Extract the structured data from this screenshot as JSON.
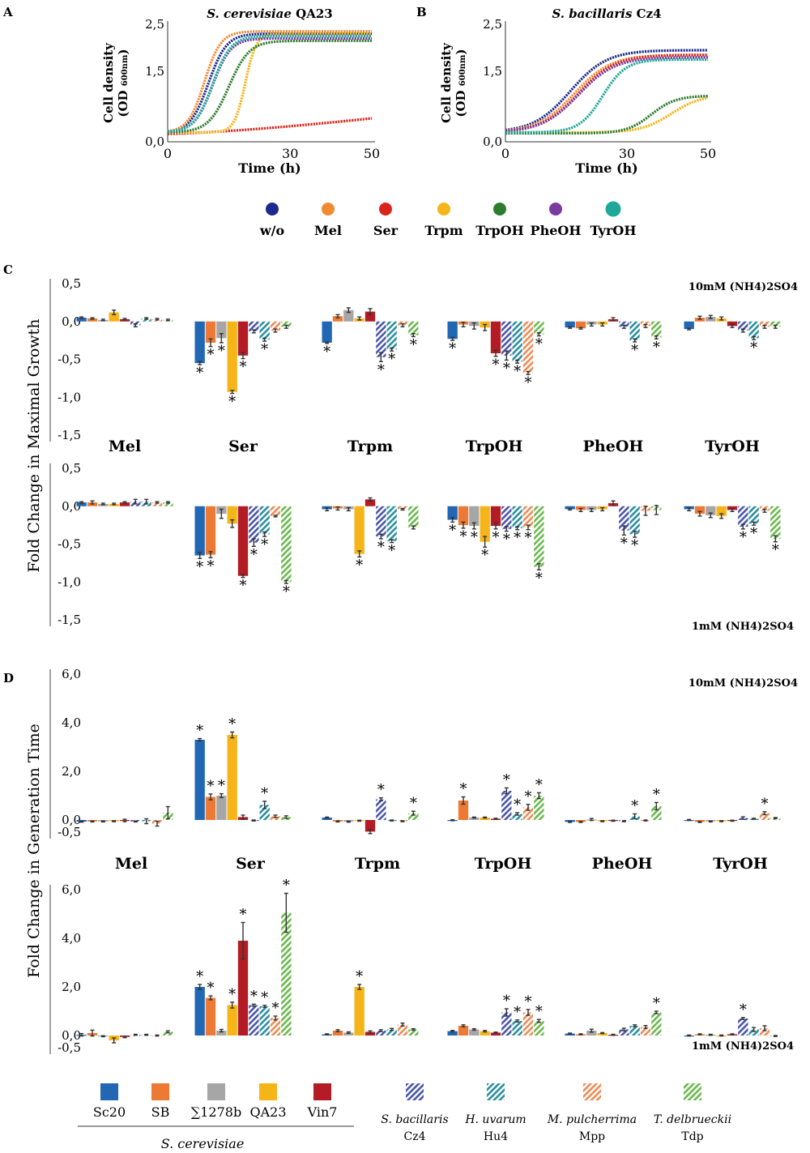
{
  "colors": {
    "w/o": "#1b2a8c",
    "Mel": "#f08a30",
    "Ser": "#d9261c",
    "Trpm": "#f5b518",
    "TrpOH": "#2e7d2e",
    "PheOH": "#7b3aa0",
    "TyrOH": "#1fa89a",
    "Sc20": "#2167b4",
    "SB": "#ed7a34",
    "S1278b": "#a6a6a6",
    "QA23": "#f5b518",
    "Vin7": "#b31c25",
    "Cz4": "#4a55a8",
    "Hu4": "#2b8fa0",
    "Mpp": "#ee8a55",
    "Tdp": "#6ab84e"
  },
  "panel_labels": {
    "A": "A",
    "B": "B",
    "C": "C",
    "D": "D"
  },
  "growth_curves": [
    {
      "type": "line",
      "panel": "A",
      "title_italic": "S. cerevisiae",
      "title_rest": " QA23",
      "xlabel": "Time (h)",
      "ylabel_1": "Cell density",
      "ylabel_2": "(OD",
      "ylabel_sub": "600nm",
      "ylabel_close": ")",
      "xlim": [
        0,
        50
      ],
      "ylim": [
        0,
        2.5
      ],
      "xticks": [
        0,
        30,
        50
      ],
      "xtick_labels": [
        "0",
        "30",
        "50"
      ],
      "yticks": [
        0,
        1.5,
        2.5
      ],
      "ytick_labels": [
        "0,0",
        "1,5",
        "2,5"
      ],
      "series": [
        {
          "name": "w/o",
          "lag": 10,
          "rate": 0.45,
          "ymax": 2.3,
          "y0": 0.2
        },
        {
          "name": "Mel",
          "lag": 9,
          "rate": 0.5,
          "ymax": 2.35,
          "y0": 0.2
        },
        {
          "name": "Ser",
          "linear": true,
          "y0": 0.17,
          "y1": 0.5
        },
        {
          "name": "Trpm",
          "lag": 19,
          "rate": 0.75,
          "ymax": 2.3,
          "y0": 0.2
        },
        {
          "name": "TrpOH",
          "lag": 15,
          "rate": 0.4,
          "ymax": 2.15,
          "y0": 0.2
        },
        {
          "name": "PheOH",
          "lag": 11,
          "rate": 0.45,
          "ymax": 2.2,
          "y0": 0.2
        },
        {
          "name": "TyrOH",
          "lag": 11,
          "rate": 0.45,
          "ymax": 2.25,
          "y0": 0.2
        }
      ]
    },
    {
      "type": "line",
      "panel": "B",
      "title_italic": "S. bacillaris",
      "title_rest": " Cz4",
      "xlabel": "Time (h)",
      "ylabel_1": "Cell density",
      "ylabel_2": "(OD",
      "ylabel_sub": "600nm",
      "ylabel_close": ")",
      "xlim": [
        0,
        50
      ],
      "ylim": [
        0,
        2.5
      ],
      "xticks": [
        0,
        30,
        50
      ],
      "xtick_labels": [
        "0",
        "30",
        "50"
      ],
      "yticks": [
        0,
        1.5,
        2.5
      ],
      "ytick_labels": [
        "0,0",
        "1,5",
        "2,5"
      ],
      "series": [
        {
          "name": "w/o",
          "lag": 16,
          "rate": 0.22,
          "ymax": 1.95,
          "y0": 0.2
        },
        {
          "name": "Mel",
          "lag": 17,
          "rate": 0.22,
          "ymax": 1.85,
          "y0": 0.2
        },
        {
          "name": "Ser",
          "lag": 18,
          "rate": 0.22,
          "ymax": 1.85,
          "y0": 0.2
        },
        {
          "name": "Trpm",
          "lag": 41,
          "rate": 0.27,
          "ymax": 1.0,
          "y0": 0.2
        },
        {
          "name": "TrpOH",
          "lag": 36,
          "rate": 0.33,
          "ymax": 0.98,
          "y0": 0.18
        },
        {
          "name": "PheOH",
          "lag": 18,
          "rate": 0.22,
          "ymax": 1.8,
          "y0": 0.2
        },
        {
          "name": "TyrOH",
          "lag": 24,
          "rate": 0.35,
          "ymax": 1.75,
          "y0": 0.2
        }
      ]
    }
  ],
  "legend_conditions": [
    "w/o",
    "Mel",
    "Ser",
    "Trpm",
    "TrpOH",
    "PheOH",
    "TyrOH"
  ],
  "chart_data": [
    {
      "type": "bar",
      "panel": "C",
      "condition": "10mM (NH4)2SO4",
      "annotation": "10mM (NH4)2SO4",
      "ylabel": "Fold Change in Maximal Growth",
      "ylim": [
        -1.5,
        0.5
      ],
      "ytick_labels": [
        "0,5",
        "0,0",
        "-0,5",
        "-1,0",
        "-1,5"
      ],
      "categories": [
        "Mel",
        "Ser",
        "Trpm",
        "TrpOH",
        "PheOH",
        "TyrOH"
      ],
      "strains": [
        "Sc20",
        "SB",
        "S1278b",
        "QA23",
        "Vin7",
        "Cz4",
        "Hu4",
        "Mpp",
        "Tdp"
      ],
      "values": [
        [
          0.05,
          0.04,
          0.02,
          0.12,
          0.03,
          -0.05,
          0.04,
          0.03,
          0.02
        ],
        [
          -0.55,
          -0.28,
          -0.22,
          -0.93,
          -0.45,
          -0.13,
          -0.24,
          -0.12,
          -0.07
        ],
        [
          -0.28,
          0.07,
          0.15,
          0.04,
          0.13,
          -0.47,
          -0.37,
          -0.05,
          -0.18
        ],
        [
          -0.23,
          -0.04,
          -0.06,
          -0.08,
          -0.42,
          -0.45,
          -0.53,
          -0.68,
          -0.17
        ],
        [
          -0.08,
          -0.09,
          -0.04,
          -0.04,
          0.03,
          -0.07,
          -0.25,
          -0.06,
          -0.21
        ],
        [
          -0.1,
          0.05,
          0.06,
          0.04,
          -0.06,
          -0.12,
          -0.22,
          -0.07,
          -0.07
        ]
      ],
      "errors": [
        [
          0.01,
          0.01,
          0.01,
          0.03,
          0.01,
          0.02,
          0.01,
          0.01,
          0.01
        ],
        [
          0.02,
          0.05,
          0.06,
          0.02,
          0.04,
          0.02,
          0.02,
          0.02,
          0.02
        ],
        [
          0.01,
          0.02,
          0.03,
          0.02,
          0.04,
          0.06,
          0.02,
          0.02,
          0.02
        ],
        [
          0.02,
          0.03,
          0.04,
          0.04,
          0.04,
          0.06,
          0.02,
          0.02,
          0.02
        ],
        [
          0.01,
          0.01,
          0.02,
          0.02,
          0.02,
          0.02,
          0.02,
          0.02,
          0.02
        ],
        [
          0.01,
          0.02,
          0.02,
          0.02,
          0.02,
          0.02,
          0.02,
          0.02,
          0.02
        ]
      ],
      "significant": [
        [],
        [
          0,
          1,
          2,
          3,
          4,
          6
        ],
        [
          0,
          5,
          6,
          8
        ],
        [
          0,
          4,
          5,
          6,
          7,
          8
        ],
        [
          6,
          8
        ],
        [
          6
        ]
      ]
    },
    {
      "type": "bar",
      "panel": "C",
      "condition": "1mM (NH4)2SO4",
      "annotation": "1mM (NH4)2SO4",
      "ylim": [
        -1.5,
        0.5
      ],
      "ytick_labels": [
        "0,5",
        "0,0",
        "-0,5",
        "-1,0",
        "-1,5"
      ],
      "categories": [
        "Mel",
        "Ser",
        "Trpm",
        "TrpOH",
        "PheOH",
        "TyrOH"
      ],
      "strains": [
        "Sc20",
        "SB",
        "S1278b",
        "QA23",
        "Vin7",
        "Cz4",
        "Hu4",
        "Mpp",
        "Tdp"
      ],
      "values": [
        [
          0.05,
          0.05,
          0.03,
          0.03,
          0.05,
          0.06,
          0.06,
          0.05,
          0.05
        ],
        [
          -0.65,
          -0.64,
          -0.1,
          -0.23,
          -0.92,
          -0.48,
          -0.37,
          -0.13,
          -1.0
        ],
        [
          -0.04,
          -0.03,
          -0.04,
          -0.63,
          0.09,
          -0.4,
          -0.46,
          -0.04,
          -0.28
        ],
        [
          -0.18,
          -0.25,
          -0.26,
          -0.47,
          -0.26,
          -0.3,
          -0.29,
          -0.28,
          -0.8
        ],
        [
          -0.04,
          -0.05,
          -0.05,
          -0.04,
          0.04,
          -0.32,
          -0.37,
          -0.06,
          -0.05
        ],
        [
          -0.04,
          -0.1,
          -0.12,
          -0.13,
          -0.05,
          -0.27,
          -0.23,
          -0.06,
          -0.43
        ]
      ],
      "errors": [
        [
          0.01,
          0.02,
          0.01,
          0.01,
          0.01,
          0.03,
          0.03,
          0.01,
          0.01
        ],
        [
          0.04,
          0.04,
          0.06,
          0.05,
          0.02,
          0.05,
          0.03,
          0.01,
          0.02
        ],
        [
          0.02,
          0.02,
          0.02,
          0.04,
          0.02,
          0.03,
          0.02,
          0.01,
          0.02
        ],
        [
          0.03,
          0.04,
          0.04,
          0.07,
          0.04,
          0.03,
          0.02,
          0.03,
          0.04
        ],
        [
          0.01,
          0.02,
          0.02,
          0.02,
          0.03,
          0.06,
          0.04,
          0.06,
          0.06
        ],
        [
          0.02,
          0.03,
          0.03,
          0.03,
          0.02,
          0.03,
          0.02,
          0.02,
          0.04
        ]
      ],
      "significant": [
        [],
        [
          0,
          1,
          4,
          5,
          6,
          8
        ],
        [
          3,
          5,
          6
        ],
        [
          0,
          1,
          2,
          3,
          4,
          5,
          6,
          7,
          8
        ],
        [
          5,
          6
        ],
        [
          5,
          6,
          8
        ]
      ]
    },
    {
      "type": "bar",
      "panel": "D",
      "condition": "10mM (NH4)2SO4",
      "annotation": "10mM (NH4)2SO4",
      "ylabel": "Fold Change in Generation Time",
      "ylim": [
        -0.5,
        6.0
      ],
      "ytick_labels": [
        "6,0",
        "4,0",
        "2,0",
        "0,0",
        "-0,5"
      ],
      "categories": [
        "Mel",
        "Ser",
        "Trpm",
        "TrpOH",
        "PheOH",
        "TyrOH"
      ],
      "strains": [
        "Sc20",
        "SB",
        "S1278b",
        "QA23",
        "Vin7",
        "Cz4",
        "Hu4",
        "Mpp",
        "Tdp"
      ],
      "values": [
        [
          -0.07,
          -0.06,
          -0.06,
          -0.05,
          -0.02,
          -0.06,
          -0.05,
          -0.15,
          0.3
        ],
        [
          3.3,
          0.95,
          1.0,
          3.5,
          0.12,
          -0.02,
          0.62,
          0.15,
          0.12
        ],
        [
          0.1,
          -0.06,
          -0.07,
          -0.03,
          -0.48,
          0.85,
          -0.02,
          -0.05,
          0.28
        ],
        [
          -0.01,
          0.8,
          0.1,
          0.1,
          0.05,
          1.2,
          0.25,
          0.52,
          1.0
        ],
        [
          -0.08,
          -0.08,
          0.02,
          -0.05,
          -0.03,
          -0.05,
          0.15,
          -0.02,
          0.57
        ],
        [
          0.0,
          -0.08,
          -0.06,
          -0.05,
          -0.03,
          0.08,
          0.05,
          0.28,
          0.08
        ]
      ],
      "errors": [
        [
          0.02,
          0.02,
          0.02,
          0.02,
          0.05,
          0.02,
          0.1,
          0.1,
          0.25
        ],
        [
          0.05,
          0.12,
          0.08,
          0.12,
          0.08,
          0.02,
          0.15,
          0.05,
          0.05
        ],
        [
          0.02,
          0.02,
          0.02,
          0.02,
          0.08,
          0.06,
          0.02,
          0.02,
          0.08
        ],
        [
          0.02,
          0.15,
          0.02,
          0.02,
          0.02,
          0.12,
          0.05,
          0.12,
          0.12
        ],
        [
          0.02,
          0.02,
          0.04,
          0.02,
          0.02,
          0.02,
          0.1,
          0.02,
          0.15
        ],
        [
          0.02,
          0.02,
          0.02,
          0.02,
          0.02,
          0.05,
          0.02,
          0.06,
          0.02
        ]
      ],
      "significant": [
        [],
        [
          0,
          1,
          2,
          3,
          6
        ],
        [
          5,
          8
        ],
        [
          1,
          5,
          6,
          7,
          8
        ],
        [
          6,
          8
        ],
        [
          7
        ]
      ]
    },
    {
      "type": "bar",
      "panel": "D",
      "condition": "1mM (NH4)2SO4",
      "annotation": "1mM (NH4)2SO4",
      "ylim": [
        -0.5,
        6.0
      ],
      "ytick_labels": [
        "6,0",
        "4,0",
        "2,0",
        "0,0",
        "-0,5"
      ],
      "categories": [
        "Mel",
        "Ser",
        "Trpm",
        "TrpOH",
        "PheOH",
        "TyrOH"
      ],
      "strains": [
        "Sc20",
        "SB",
        "S1278b",
        "QA23",
        "Vin7",
        "Cz4",
        "Hu4",
        "Mpp",
        "Tdp"
      ],
      "values": [
        [
          0.03,
          0.1,
          -0.03,
          -0.2,
          -0.06,
          0.03,
          0.03,
          0.0,
          0.15
        ],
        [
          2.0,
          1.55,
          0.2,
          1.25,
          3.9,
          1.25,
          1.2,
          0.72,
          5.05
        ],
        [
          0.05,
          0.2,
          0.12,
          2.0,
          0.15,
          0.2,
          0.25,
          0.45,
          0.25
        ],
        [
          0.18,
          0.4,
          0.25,
          0.18,
          0.12,
          0.95,
          0.6,
          0.95,
          0.6
        ],
        [
          0.08,
          0.05,
          0.2,
          0.1,
          0.03,
          0.25,
          0.4,
          0.35,
          0.95
        ],
        [
          0.0,
          0.05,
          0.03,
          0.0,
          0.05,
          0.7,
          0.25,
          0.3,
          -0.02
        ]
      ],
      "errors": [
        [
          0.05,
          0.12,
          0.02,
          0.1,
          0.03,
          0.02,
          0.02,
          0.02,
          0.04
        ],
        [
          0.1,
          0.08,
          0.05,
          0.12,
          0.75,
          0.04,
          0.04,
          0.08,
          0.8
        ],
        [
          0.02,
          0.04,
          0.03,
          0.1,
          0.04,
          0.04,
          0.04,
          0.06,
          0.03
        ],
        [
          0.03,
          0.04,
          0.03,
          0.03,
          0.02,
          0.15,
          0.04,
          0.12,
          0.06
        ],
        [
          0.02,
          0.02,
          0.06,
          0.02,
          0.02,
          0.05,
          0.04,
          0.06,
          0.05
        ],
        [
          0.02,
          0.02,
          0.02,
          0.02,
          0.02,
          0.04,
          0.08,
          0.1,
          0.02
        ]
      ],
      "significant": [
        [],
        [
          0,
          1,
          3,
          4,
          5,
          6,
          7,
          8
        ],
        [
          3
        ],
        [
          5,
          6,
          7,
          8
        ],
        [
          8
        ],
        [
          5
        ]
      ]
    }
  ],
  "strain_legend": {
    "cerevisiae": [
      {
        "key": "Sc20",
        "label": "Sc20"
      },
      {
        "key": "SB",
        "label": "SB"
      },
      {
        "key": "S1278b",
        "label": "∑1278b"
      },
      {
        "key": "QA23",
        "label": "QA23"
      },
      {
        "key": "Vin7",
        "label": "Vin7"
      }
    ],
    "cerevisiae_group_label": "S. cerevisiae",
    "non_saccharomyces": [
      {
        "key": "Cz4",
        "species": "S. bacillaris",
        "strain": "Cz4"
      },
      {
        "key": "Hu4",
        "species": "H. uvarum",
        "strain": "Hu4"
      },
      {
        "key": "Mpp",
        "species": "M. pulcherrima",
        "strain": "Mpp"
      },
      {
        "key": "Tdp",
        "species": "T. delbrueckii",
        "strain": "Tdp"
      }
    ]
  },
  "significance_marker": "*"
}
